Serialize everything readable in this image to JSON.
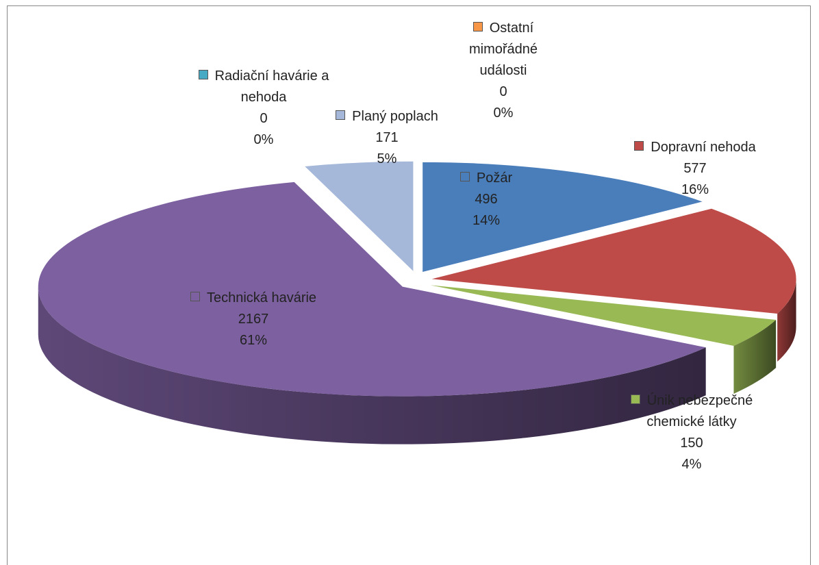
{
  "chart_data": {
    "type": "pie",
    "categories": [
      "Požár",
      "Dopravní nehoda",
      "Únik nebezpečné chemické látky",
      "Technická havárie",
      "Radiační havárie a nehoda",
      "Planý poplach",
      "Ostatní mimořádné události"
    ],
    "values": [
      496,
      577,
      150,
      2167,
      0,
      171,
      0
    ],
    "percent_labels": [
      "14%",
      "16%",
      "4%",
      "61%",
      "0%",
      "5%",
      "0%"
    ],
    "colors": [
      "#4a7ebb",
      "#be4b48",
      "#98b954",
      "#7d60a0",
      "#46aac5",
      "#a5b8d9",
      "#f79646"
    ],
    "exploded": true,
    "three_d": true
  }
}
